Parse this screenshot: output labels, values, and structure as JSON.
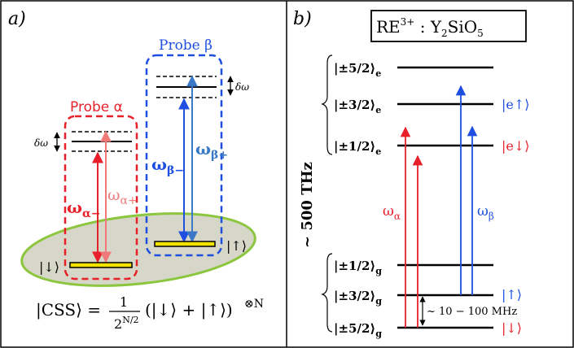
{
  "panel_a": {
    "label": "a)",
    "probe_alpha": {
      "title": "Probe α",
      "omega_minus": "ω",
      "omega_minus_sub": "α−",
      "omega_plus": "ω",
      "omega_plus_sub": "α+",
      "detuning": "δω"
    },
    "probe_beta": {
      "title": "Probe β",
      "omega_minus": "ω",
      "omega_minus_sub": "β−",
      "omega_plus": "ω",
      "omega_plus_sub": "β+",
      "detuning": "δω"
    },
    "state_down": "|↓⟩",
    "state_up": "|↑⟩",
    "formula": {
      "lhs": "|CSS⟩ =",
      "numerator": "1",
      "denominator": "2",
      "denominator_exp": "N/2",
      "body": "(|↓⟩ + |↑⟩)",
      "power": "⊗N"
    }
  },
  "panel_b": {
    "label": "b)",
    "title": "RE",
    "title_sup": "3+",
    "title_rest": " : Y",
    "title_sub1": "2",
    "title_mid": "SiO",
    "title_sub2": "5",
    "excited_levels": [
      {
        "label": "|±5/2⟩",
        "sub": "e"
      },
      {
        "label": "|±3/2⟩",
        "sub": "e"
      },
      {
        "label": "|±1/2⟩",
        "sub": "e"
      }
    ],
    "ground_levels": [
      {
        "label": "|±1/2⟩",
        "sub": "g"
      },
      {
        "label": "|±3/2⟩",
        "sub": "g"
      },
      {
        "label": "|±5/2⟩",
        "sub": "g"
      }
    ],
    "e_up": "|e↑⟩",
    "e_down": "|e↓⟩",
    "g_up": "|↑⟩",
    "g_down": "|↓⟩",
    "freq_axis": "~ 500 THz",
    "omega_alpha": "ω",
    "omega_alpha_sub": "α",
    "omega_beta": "ω",
    "omega_beta_sub": "β",
    "splitting": "~ 10 − 100 MHz"
  },
  "colors": {
    "red": "#e8202a",
    "pink": "#f07a7a",
    "blue": "#1f4fe0",
    "lightblue": "#3a78c8",
    "ellipse_fill": "#d6d7c8",
    "ellipse_stroke": "#8cc63e",
    "level_fill": "#f2e200"
  }
}
